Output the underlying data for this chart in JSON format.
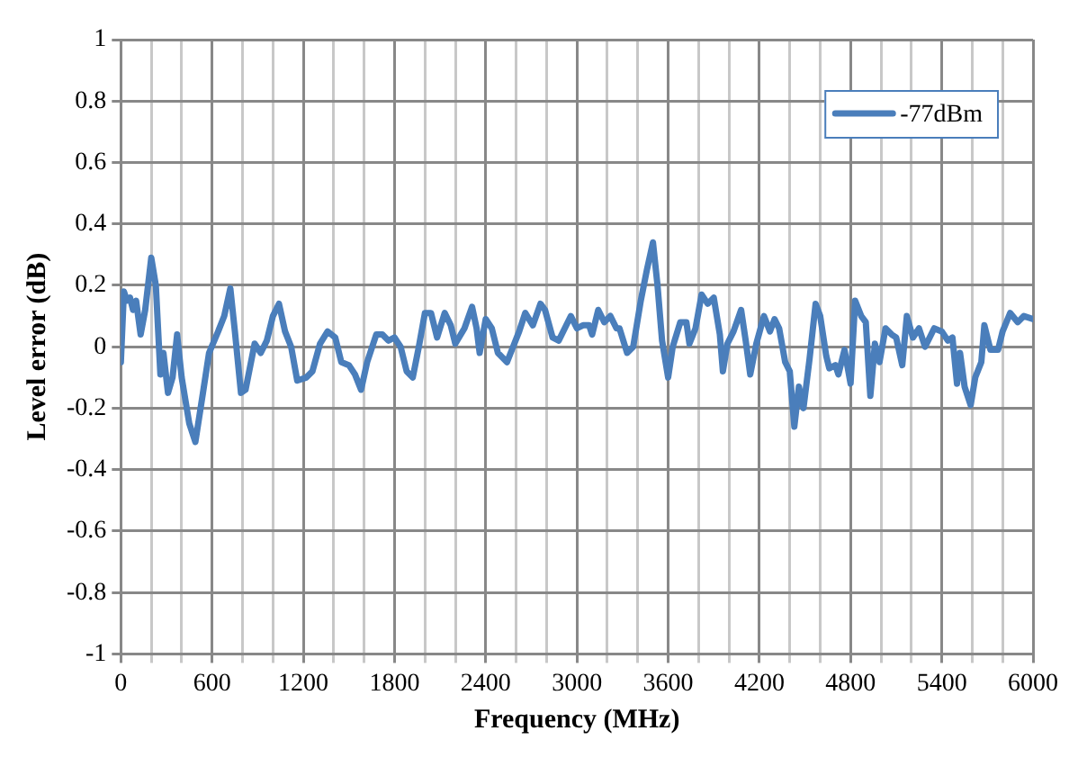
{
  "chart_data": {
    "type": "line",
    "xlabel": "Frequency (MHz)",
    "ylabel": "Level error (dB)",
    "xlim": [
      0,
      6000
    ],
    "ylim": [
      -1,
      1
    ],
    "xticks": [
      0,
      {
        "value": 200,
        "label": null
      },
      {
        "value": 400,
        "label": null
      },
      600,
      {
        "value": 800,
        "label": null
      },
      {
        "value": 1000,
        "label": null
      },
      1200,
      {
        "value": 1400,
        "label": null
      },
      {
        "value": 1600,
        "label": null
      },
      1800,
      {
        "value": 2000,
        "label": null
      },
      {
        "value": 2200,
        "label": null
      },
      2400,
      {
        "value": 2600,
        "label": null
      },
      {
        "value": 2800,
        "label": null
      },
      3000,
      {
        "value": 3200,
        "label": null
      },
      {
        "value": 3400,
        "label": null
      },
      3600,
      {
        "value": 3800,
        "label": null
      },
      {
        "value": 4000,
        "label": null
      },
      4200,
      {
        "value": 4400,
        "label": null
      },
      {
        "value": 4600,
        "label": null
      },
      4800,
      {
        "value": 5000,
        "label": null
      },
      {
        "value": 5200,
        "label": null
      },
      5400,
      {
        "value": 5600,
        "label": null
      },
      {
        "value": 5800,
        "label": null
      },
      6000
    ],
    "yticks": [
      -1,
      -0.8,
      -0.6,
      -0.4,
      -0.2,
      0,
      0.2,
      0.4,
      0.6,
      0.8,
      1
    ],
    "grid": true,
    "legend": "top right",
    "marker": "none",
    "line_style": "solid",
    "series": [
      {
        "name": "-77dBm",
        "color": "#4a7ebb",
        "x": [
          0,
          20,
          40,
          60,
          80,
          100,
          130,
          160,
          200,
          230,
          260,
          280,
          310,
          340,
          370,
          400,
          450,
          490,
          540,
          580,
          640,
          680,
          720,
          750,
          790,
          820,
          880,
          920,
          960,
          1000,
          1040,
          1080,
          1120,
          1160,
          1220,
          1260,
          1310,
          1360,
          1410,
          1450,
          1500,
          1540,
          1580,
          1620,
          1680,
          1720,
          1760,
          1800,
          1840,
          1880,
          1920,
          1960,
          2000,
          2040,
          2080,
          2130,
          2170,
          2200,
          2260,
          2310,
          2340,
          2360,
          2400,
          2440,
          2480,
          2540,
          2580,
          2620,
          2660,
          2710,
          2760,
          2790,
          2840,
          2880,
          2930,
          2960,
          3000,
          3040,
          3080,
          3100,
          3140,
          3180,
          3220,
          3260,
          3280,
          3330,
          3370,
          3420,
          3460,
          3500,
          3530,
          3560,
          3600,
          3630,
          3680,
          3720,
          3740,
          3780,
          3820,
          3860,
          3900,
          3940,
          3960,
          3990,
          4030,
          4080,
          4110,
          4140,
          4180,
          4230,
          4270,
          4300,
          4330,
          4370,
          4400,
          4430,
          4460,
          4490,
          4530,
          4570,
          4600,
          4640,
          4660,
          4700,
          4720,
          4760,
          4800,
          4830,
          4870,
          4900,
          4930,
          4960,
          4990,
          5030,
          5070,
          5100,
          5140,
          5170,
          5210,
          5250,
          5290,
          5350,
          5400,
          5440,
          5470,
          5500,
          5520,
          5550,
          5590,
          5620,
          5660,
          5680,
          5720,
          5770,
          5800,
          5850,
          5900,
          5940,
          6000
        ],
        "values": [
          -0.05,
          0.18,
          0.15,
          0.16,
          0.12,
          0.15,
          0.04,
          0.12,
          0.29,
          0.2,
          -0.09,
          -0.02,
          -0.15,
          -0.1,
          0.04,
          -0.1,
          -0.25,
          -0.31,
          -0.15,
          -0.02,
          0.05,
          0.1,
          0.19,
          0.05,
          -0.15,
          -0.14,
          0.01,
          -0.02,
          0.02,
          0.1,
          0.14,
          0.05,
          0.0,
          -0.11,
          -0.1,
          -0.08,
          0.01,
          0.05,
          0.03,
          -0.05,
          -0.06,
          -0.09,
          -0.14,
          -0.05,
          0.04,
          0.04,
          0.02,
          0.03,
          0.0,
          -0.08,
          -0.1,
          0.0,
          0.11,
          0.11,
          0.03,
          0.11,
          0.07,
          0.01,
          0.06,
          0.13,
          0.06,
          -0.02,
          0.09,
          0.06,
          -0.02,
          -0.05,
          0.0,
          0.05,
          0.11,
          0.07,
          0.14,
          0.12,
          0.03,
          0.02,
          0.07,
          0.1,
          0.06,
          0.07,
          0.07,
          0.04,
          0.12,
          0.08,
          0.1,
          0.06,
          0.06,
          -0.02,
          0.0,
          0.15,
          0.25,
          0.34,
          0.2,
          0.02,
          -0.1,
          0.0,
          0.08,
          0.08,
          0.01,
          0.06,
          0.17,
          0.14,
          0.16,
          0.04,
          -0.08,
          0.01,
          0.05,
          0.12,
          0.02,
          -0.09,
          0.01,
          0.1,
          0.05,
          0.09,
          0.06,
          -0.05,
          -0.08,
          -0.26,
          -0.13,
          -0.2,
          -0.04,
          0.14,
          0.1,
          -0.03,
          -0.07,
          -0.06,
          -0.09,
          -0.01,
          -0.12,
          0.15,
          0.1,
          0.08,
          -0.16,
          0.01,
          -0.05,
          0.06,
          0.04,
          0.03,
          -0.06,
          0.1,
          0.03,
          0.06,
          0.0,
          0.06,
          0.05,
          0.02,
          0.03,
          -0.12,
          -0.02,
          -0.13,
          -0.19,
          -0.1,
          -0.05,
          0.07,
          -0.01,
          -0.01,
          0.05,
          0.11,
          0.08,
          0.1,
          0.09
        ]
      }
    ]
  }
}
